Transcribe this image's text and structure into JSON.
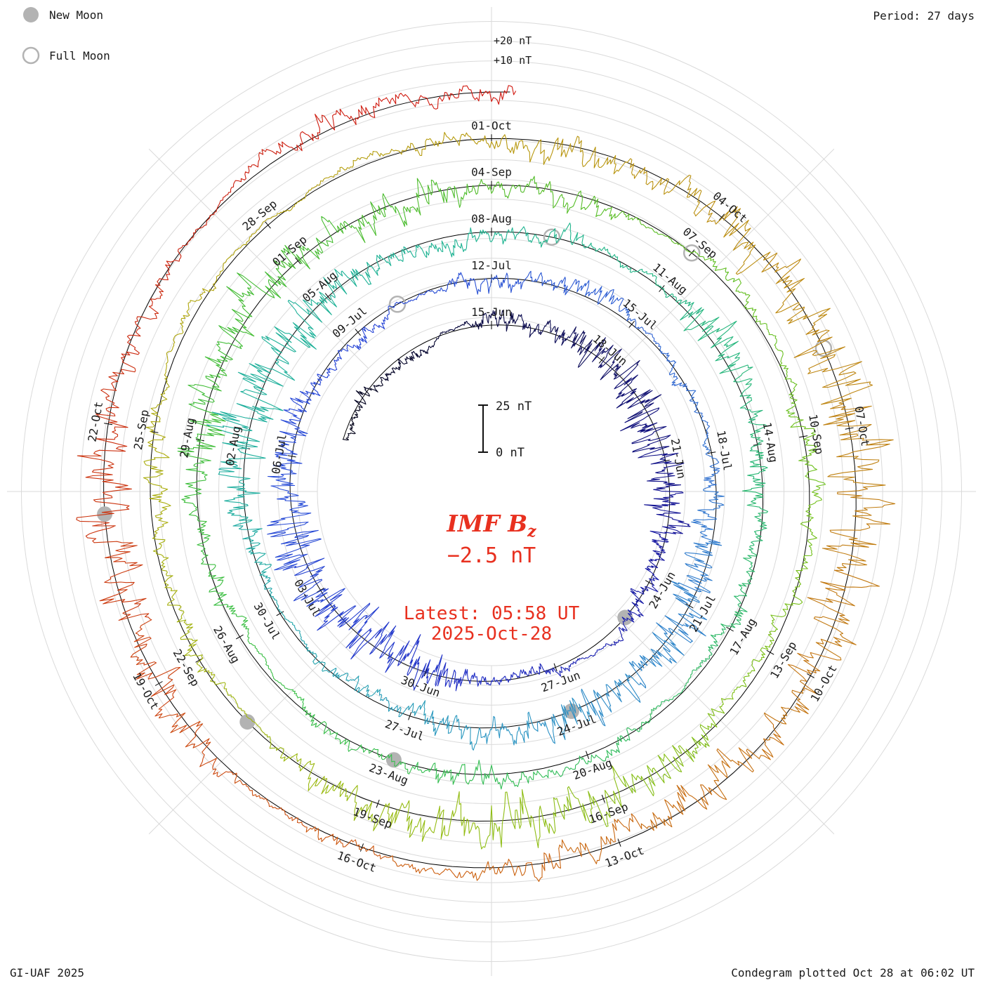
{
  "header": {
    "period_label": "Period: 27 days"
  },
  "legend": {
    "new_moon": "New Moon",
    "full_moon": "Full Moon"
  },
  "footer": {
    "credit": "GI-UAF 2025",
    "plotted": "Condegram plotted Oct 28 at 06:02 UT"
  },
  "scale": {
    "top_outer": "+20 nT",
    "top_inner": "+10 nT",
    "bar_top": "25 nT",
    "bar_bottom": "0 nT"
  },
  "center": {
    "title": "IMF B",
    "title_sub": "z",
    "value": "−2.5 nT",
    "latest": "Latest: 05:58 UT",
    "date": "2025-Oct-28",
    "accent": "#e8301f"
  },
  "chart_data": {
    "type": "line",
    "layout": "spiral condegram, clockwise from top, one revolution = 27 days, grid circles every 10 nT, legend top-left, annotations center",
    "quantity": "IMF Bz (nT)",
    "period_days": 27,
    "start": "2025-Jun-10",
    "end": "2025-Oct-28 06:00 UT",
    "latest_time": "05:58 UT",
    "latest_value_nT": -2.5,
    "gridline_step_nT": 10,
    "scalebar_nT": [
      0,
      25
    ],
    "zero_day_date": "15-Jun",
    "start_day_offset": -5.3,
    "end_day_offset": 135.25,
    "baseline_dates_at_top": [
      "15-Jun",
      "12-Jul",
      "08-Aug",
      "04-Sep",
      "01-Oct"
    ],
    "date_labels": [
      {
        "day": 0,
        "label": "15-Jun"
      },
      {
        "day": 3,
        "label": "18-Jun"
      },
      {
        "day": 6,
        "label": "21-Jun"
      },
      {
        "day": 9,
        "label": "24-Jun"
      },
      {
        "day": 12,
        "label": "27-Jun"
      },
      {
        "day": 15,
        "label": "30-Jun"
      },
      {
        "day": 18,
        "label": "03-Jul"
      },
      {
        "day": 21,
        "label": "06-Jul"
      },
      {
        "day": 24,
        "label": "09-Jul"
      },
      {
        "day": 27,
        "label": "12-Jul"
      },
      {
        "day": 30,
        "label": "15-Jul"
      },
      {
        "day": 33,
        "label": "18-Jul"
      },
      {
        "day": 36,
        "label": "21-Jul"
      },
      {
        "day": 39,
        "label": "24-Jul"
      },
      {
        "day": 42,
        "label": "27-Jul"
      },
      {
        "day": 45,
        "label": "30-Jul"
      },
      {
        "day": 48,
        "label": "02-Aug"
      },
      {
        "day": 51,
        "label": "05-Aug"
      },
      {
        "day": 54,
        "label": "08-Aug"
      },
      {
        "day": 57,
        "label": "11-Aug"
      },
      {
        "day": 60,
        "label": "14-Aug"
      },
      {
        "day": 63,
        "label": "17-Aug"
      },
      {
        "day": 66,
        "label": "20-Aug"
      },
      {
        "day": 69,
        "label": "23-Aug"
      },
      {
        "day": 72,
        "label": "26-Aug"
      },
      {
        "day": 75,
        "label": "29-Aug"
      },
      {
        "day": 78,
        "label": "01-Sep"
      },
      {
        "day": 81,
        "label": "04-Sep"
      },
      {
        "day": 84,
        "label": "07-Sep"
      },
      {
        "day": 87,
        "label": "10-Sep"
      },
      {
        "day": 90,
        "label": "13-Sep"
      },
      {
        "day": 93,
        "label": "16-Sep"
      },
      {
        "day": 96,
        "label": "19-Sep"
      },
      {
        "day": 99,
        "label": "22-Sep"
      },
      {
        "day": 102,
        "label": "25-Sep"
      },
      {
        "day": 105,
        "label": "28-Sep"
      },
      {
        "day": 108,
        "label": "01-Oct"
      },
      {
        "day": 111,
        "label": "04-Oct"
      },
      {
        "day": 114,
        "label": "07-Oct"
      },
      {
        "day": 117,
        "label": "10-Oct"
      },
      {
        "day": 120,
        "label": "13-Oct"
      },
      {
        "day": 123,
        "label": "16-Oct"
      },
      {
        "day": 126,
        "label": "19-Oct"
      },
      {
        "day": 129,
        "label": "22-Oct"
      }
    ],
    "moons": {
      "new": [
        {
          "day": 10,
          "date": "25-Jun"
        },
        {
          "day": 39,
          "date": "24-Jul"
        },
        {
          "day": 69,
          "date": "23-Aug"
        },
        {
          "day": 98,
          "date": "21-Sep"
        },
        {
          "day": 128,
          "date": "21-Oct"
        }
      ],
      "full": [
        {
          "day": 25,
          "date": "10-Jul"
        },
        {
          "day": 55,
          "date": "09-Aug"
        },
        {
          "day": 84,
          "date": "07-Sep"
        },
        {
          "day": 113,
          "date": "06-Oct"
        }
      ]
    },
    "color_stops": [
      [
        -5.3,
        "#000014"
      ],
      [
        -2,
        "#05052e"
      ],
      [
        2,
        "#0d0d58"
      ],
      [
        8,
        "#15159e"
      ],
      [
        14,
        "#1f2cc4"
      ],
      [
        20,
        "#2b50d8"
      ],
      [
        24,
        "#2744d6"
      ],
      [
        33,
        "#2f6fd0"
      ],
      [
        40,
        "#2b94c4"
      ],
      [
        47,
        "#1fae9f"
      ],
      [
        54,
        "#1eb492"
      ],
      [
        63,
        "#2cb866"
      ],
      [
        70,
        "#38c04a"
      ],
      [
        78,
        "#44bc30"
      ],
      [
        88,
        "#72c01c"
      ],
      [
        96,
        "#98bc12"
      ],
      [
        103,
        "#b0a80e"
      ],
      [
        109,
        "#b8960e"
      ],
      [
        116,
        "#c27a12"
      ],
      [
        122,
        "#cc6010"
      ],
      [
        127,
        "#cc3c10"
      ],
      [
        132,
        "#cc2010"
      ],
      [
        135.3,
        "#d21810"
      ]
    ],
    "activity": {
      "storm_windows_day_amp": [
        [
          2,
          8,
          6
        ],
        [
          14,
          22,
          6.5
        ],
        [
          34,
          41,
          5.5
        ],
        [
          46,
          53,
          6
        ],
        [
          56,
          60,
          4.5
        ],
        [
          74,
          81,
          5.5
        ],
        [
          90,
          98,
          5.5
        ],
        [
          108,
          121,
          6.5
        ],
        [
          124,
          131,
          5.5
        ]
      ],
      "calm_windows": [
        [
          55.5,
          57.5
        ],
        [
          104,
          107
        ]
      ]
    }
  }
}
